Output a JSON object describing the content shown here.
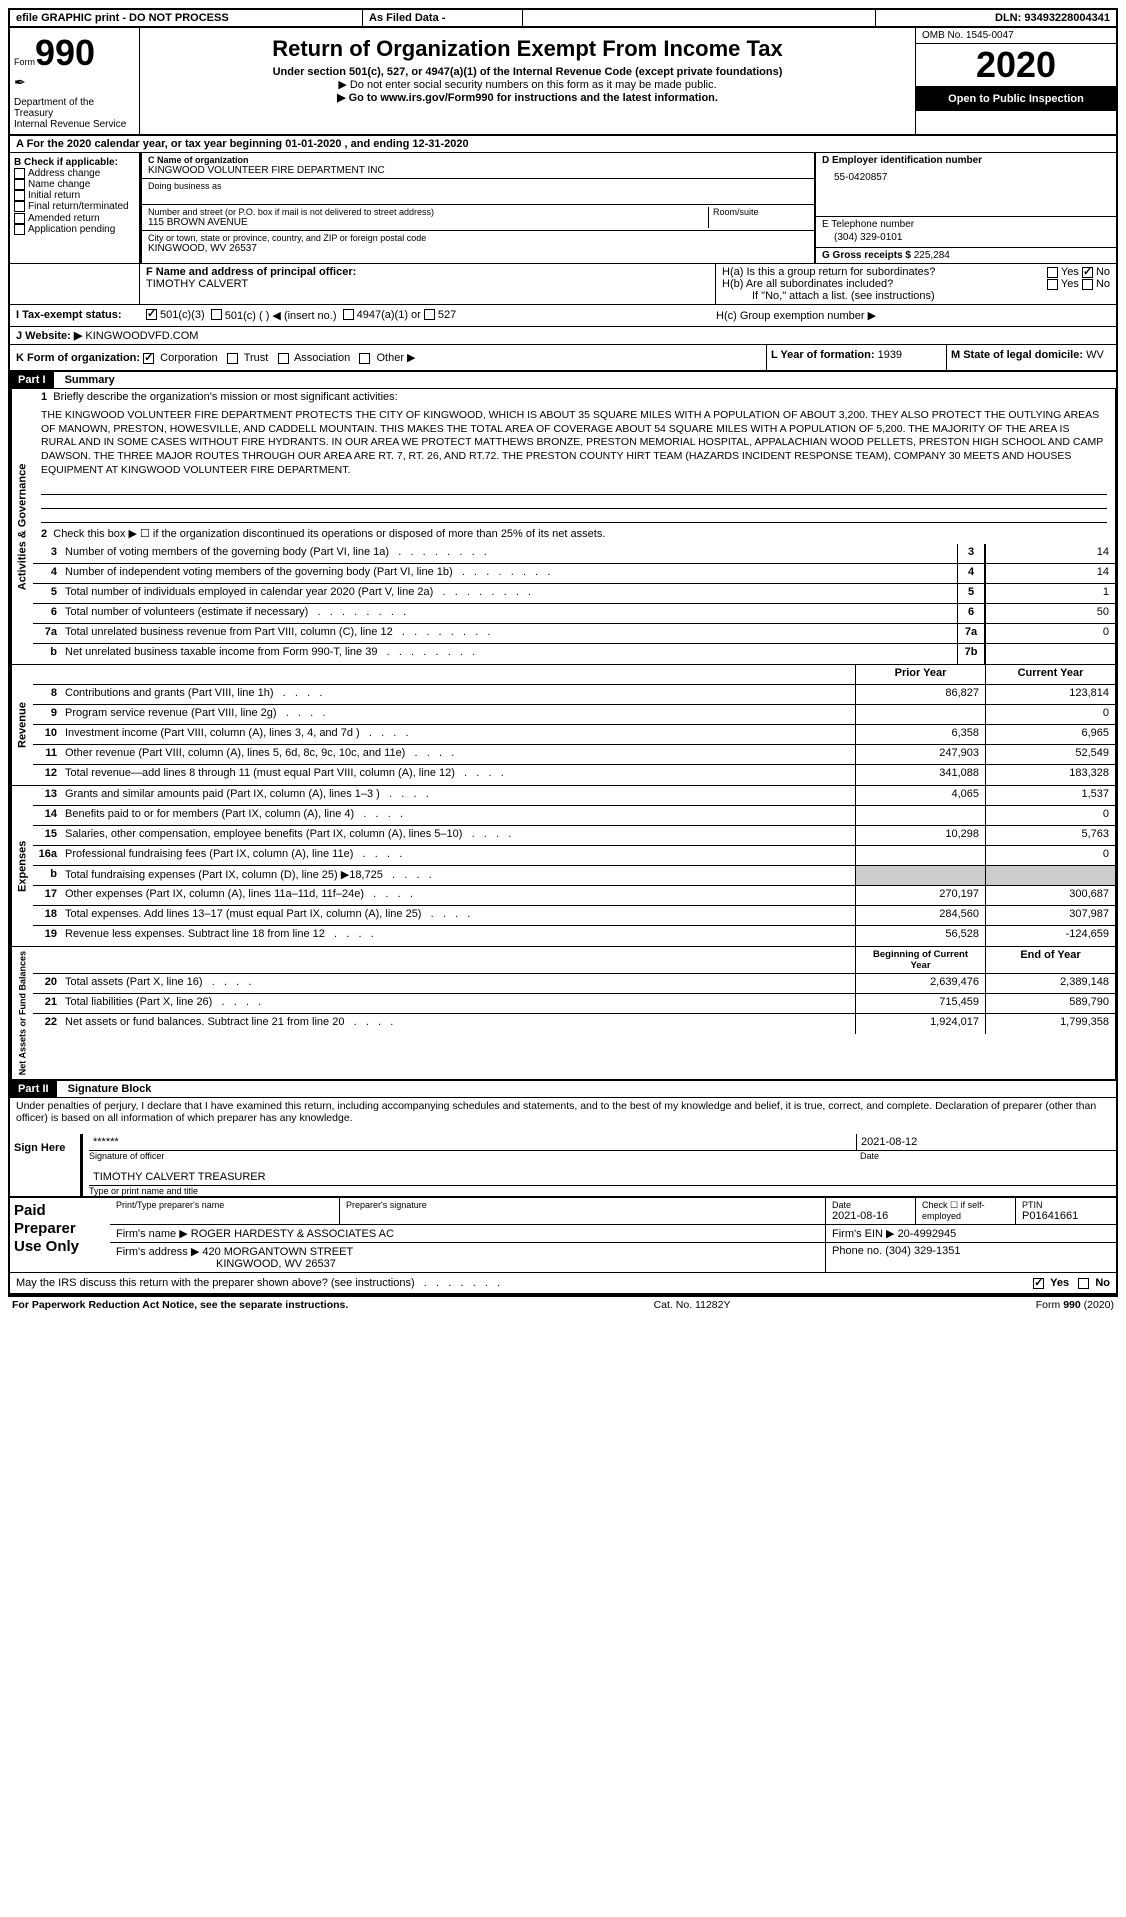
{
  "header_top": {
    "efile": "efile GRAPHIC print - DO NOT PROCESS",
    "as_filed": "As Filed Data -",
    "dln": "DLN: 93493228004341"
  },
  "header": {
    "form_prefix": "Form",
    "form_num": "990",
    "dept": "Department of the Treasury",
    "irs": "Internal Revenue Service",
    "title": "Return of Organization Exempt From Income Tax",
    "subtitle": "Under section 501(c), 527, or 4947(a)(1) of the Internal Revenue Code (except private foundations)",
    "warn": "▶ Do not enter social security numbers on this form as it may be made public.",
    "goto": "▶ Go to www.irs.gov/Form990 for instructions and the latest information.",
    "omb": "OMB No. 1545-0047",
    "year": "2020",
    "open": "Open to Public Inspection"
  },
  "sectionA": "A   For the 2020 calendar year, or tax year beginning 01-01-2020   , and ending 12-31-2020",
  "sectionB": {
    "label": "B Check if applicable:",
    "items": [
      "Address change",
      "Name change",
      "Initial return",
      "Final return/terminated",
      "Amended return",
      "Application pending"
    ]
  },
  "sectionC": {
    "label": "C Name of organization",
    "name": "KINGWOOD VOLUNTEER FIRE DEPARTMENT INC",
    "dba_label": "Doing business as",
    "street_label": "Number and street (or P.O. box if mail is not delivered to street address)",
    "street": "115 BROWN AVENUE",
    "room_label": "Room/suite",
    "city_label": "City or town, state or province, country, and ZIP or foreign postal code",
    "city": "KINGWOOD, WV  26537"
  },
  "sectionD": {
    "label": "D Employer identification number",
    "val": "55-0420857"
  },
  "sectionE": {
    "label": "E Telephone number",
    "val": "(304) 329-0101"
  },
  "sectionG": {
    "label": "G Gross receipts $",
    "val": "225,284"
  },
  "sectionF": {
    "label": "F  Name and address of principal officer:",
    "name": "TIMOTHY CALVERT"
  },
  "sectionH": {
    "ha": "H(a)  Is this a group return for subordinates?",
    "hb": "H(b)  Are all subordinates included?",
    "hb_note": "If \"No,\" attach a list. (see instructions)",
    "hc": "H(c)  Group exemption number ▶"
  },
  "sectionI": {
    "label": "I   Tax-exempt status:",
    "opts": [
      "501(c)(3)",
      "501(c) (  ) ◀ (insert no.)",
      "4947(a)(1) or",
      "527"
    ]
  },
  "sectionJ": {
    "label": "J   Website: ▶",
    "val": "KINGWOODVFD.COM"
  },
  "sectionK": {
    "label": "K Form of organization:",
    "opts": [
      "Corporation",
      "Trust",
      "Association",
      "Other ▶"
    ]
  },
  "sectionL": {
    "label": "L Year of formation:",
    "val": "1939"
  },
  "sectionM": {
    "label": "M State of legal domicile:",
    "val": "WV"
  },
  "part1": {
    "header": "Part I",
    "title": "Summary"
  },
  "mission": {
    "label": "Briefly describe the organization's mission or most significant activities:",
    "text": "THE KINGWOOD VOLUNTEER FIRE DEPARTMENT PROTECTS THE CITY OF KINGWOOD, WHICH IS ABOUT 35 SQUARE MILES WITH A POPULATION OF ABOUT 3,200. THEY ALSO PROTECT THE OUTLYING AREAS OF MANOWN, PRESTON, HOWESVILLE, AND CADDELL MOUNTAIN. THIS MAKES THE TOTAL AREA OF COVERAGE ABOUT 54 SQUARE MILES WITH A POPULATION OF 5,200. THE MAJORITY OF THE AREA IS RURAL AND IN SOME CASES WITHOUT FIRE HYDRANTS. IN OUR AREA WE PROTECT MATTHEWS BRONZE, PRESTON MEMORIAL HOSPITAL, APPALACHIAN WOOD PELLETS, PRESTON HIGH SCHOOL AND CAMP DAWSON. THE THREE MAJOR ROUTES THROUGH OUR AREA ARE RT. 7, RT. 26, AND RT.72. THE PRESTON COUNTY HIRT TEAM (HAZARDS INCIDENT RESPONSE TEAM), COMPANY 30 MEETS AND HOUSES EQUIPMENT AT KINGWOOD VOLUNTEER FIRE DEPARTMENT."
  },
  "governance": {
    "label_side": "Activities & Governance",
    "line2": "Check this box ▶ ☐ if the organization discontinued its operations or disposed of more than 25% of its net assets.",
    "lines": [
      {
        "n": "3",
        "text": "Number of voting members of the governing body (Part VI, line 1a)",
        "id": "3",
        "val": "14"
      },
      {
        "n": "4",
        "text": "Number of independent voting members of the governing body (Part VI, line 1b)",
        "id": "4",
        "val": "14"
      },
      {
        "n": "5",
        "text": "Total number of individuals employed in calendar year 2020 (Part V, line 2a)",
        "id": "5",
        "val": "1"
      },
      {
        "n": "6",
        "text": "Total number of volunteers (estimate if necessary)",
        "id": "6",
        "val": "50"
      },
      {
        "n": "7a",
        "text": "Total unrelated business revenue from Part VIII, column (C), line 12",
        "id": "7a",
        "val": "0"
      },
      {
        "n": "b",
        "text": "Net unrelated business taxable income from Form 990-T, line 39",
        "id": "7b",
        "val": ""
      }
    ]
  },
  "revenue": {
    "label_side": "Revenue",
    "col1": "Prior Year",
    "col2": "Current Year",
    "lines": [
      {
        "n": "8",
        "text": "Contributions and grants (Part VIII, line 1h)",
        "v1": "86,827",
        "v2": "123,814"
      },
      {
        "n": "9",
        "text": "Program service revenue (Part VIII, line 2g)",
        "v1": "",
        "v2": "0"
      },
      {
        "n": "10",
        "text": "Investment income (Part VIII, column (A), lines 3, 4, and 7d )",
        "v1": "6,358",
        "v2": "6,965"
      },
      {
        "n": "11",
        "text": "Other revenue (Part VIII, column (A), lines 5, 6d, 8c, 9c, 10c, and 11e)",
        "v1": "247,903",
        "v2": "52,549"
      },
      {
        "n": "12",
        "text": "Total revenue—add lines 8 through 11 (must equal Part VIII, column (A), line 12)",
        "v1": "341,088",
        "v2": "183,328"
      }
    ]
  },
  "expenses": {
    "label_side": "Expenses",
    "lines": [
      {
        "n": "13",
        "text": "Grants and similar amounts paid (Part IX, column (A), lines 1–3 )",
        "v1": "4,065",
        "v2": "1,537"
      },
      {
        "n": "14",
        "text": "Benefits paid to or for members (Part IX, column (A), line 4)",
        "v1": "",
        "v2": "0"
      },
      {
        "n": "15",
        "text": "Salaries, other compensation, employee benefits (Part IX, column (A), lines 5–10)",
        "v1": "10,298",
        "v2": "5,763"
      },
      {
        "n": "16a",
        "text": "Professional fundraising fees (Part IX, column (A), line 11e)",
        "v1": "",
        "v2": "0"
      },
      {
        "n": "b",
        "text": "Total fundraising expenses (Part IX, column (D), line 25) ▶18,725",
        "v1": "",
        "v2": ""
      },
      {
        "n": "17",
        "text": "Other expenses (Part IX, column (A), lines 11a–11d, 11f–24e)",
        "v1": "270,197",
        "v2": "300,687"
      },
      {
        "n": "18",
        "text": "Total expenses. Add lines 13–17 (must equal Part IX, column (A), line 25)",
        "v1": "284,560",
        "v2": "307,987"
      },
      {
        "n": "19",
        "text": "Revenue less expenses. Subtract line 18 from line 12",
        "v1": "56,528",
        "v2": "-124,659"
      }
    ]
  },
  "netassets": {
    "label_side": "Net Assets or Fund Balances",
    "col1": "Beginning of Current Year",
    "col2": "End of Year",
    "lines": [
      {
        "n": "20",
        "text": "Total assets (Part X, line 16)",
        "v1": "2,639,476",
        "v2": "2,389,148"
      },
      {
        "n": "21",
        "text": "Total liabilities (Part X, line 26)",
        "v1": "715,459",
        "v2": "589,790"
      },
      {
        "n": "22",
        "text": "Net assets or fund balances. Subtract line 21 from line 20",
        "v1": "1,924,017",
        "v2": "1,799,358"
      }
    ]
  },
  "part2": {
    "header": "Part II",
    "title": "Signature Block"
  },
  "penalties": "Under penalties of perjury, I declare that I have examined this return, including accompanying schedules and statements, and to the best of my knowledge and belief, it is true, correct, and complete. Declaration of preparer (other than officer) is based on all information of which preparer has any knowledge.",
  "sign": {
    "label": "Sign Here",
    "stars": "******",
    "sig_label": "Signature of officer",
    "date": "2021-08-12",
    "date_label": "Date",
    "name": "TIMOTHY CALVERT TREASURER",
    "name_label": "Type or print name and title"
  },
  "preparer": {
    "label": "Paid Preparer Use Only",
    "col_name": "Print/Type preparer's name",
    "col_sig": "Preparer's signature",
    "col_date": "Date",
    "date": "2021-08-16",
    "check_label": "Check ☐ if self-employed",
    "ptin_label": "PTIN",
    "ptin": "P01641661",
    "firm_name_label": "Firm's name    ▶",
    "firm_name": "ROGER HARDESTY & ASSOCIATES AC",
    "firm_ein_label": "Firm's EIN ▶",
    "firm_ein": "20-4992945",
    "firm_addr_label": "Firm's address ▶",
    "firm_addr1": "420 MORGANTOWN STREET",
    "firm_addr2": "KINGWOOD, WV  26537",
    "phone_label": "Phone no.",
    "phone": "(304) 329-1351"
  },
  "discuss": "May the IRS discuss this return with the preparer shown above? (see instructions)",
  "footer": {
    "paperwork": "For Paperwork Reduction Act Notice, see the separate instructions.",
    "catno": "Cat. No. 11282Y",
    "formno": "Form 990 (2020)"
  },
  "yesno": {
    "yes": "Yes",
    "no": "No"
  }
}
